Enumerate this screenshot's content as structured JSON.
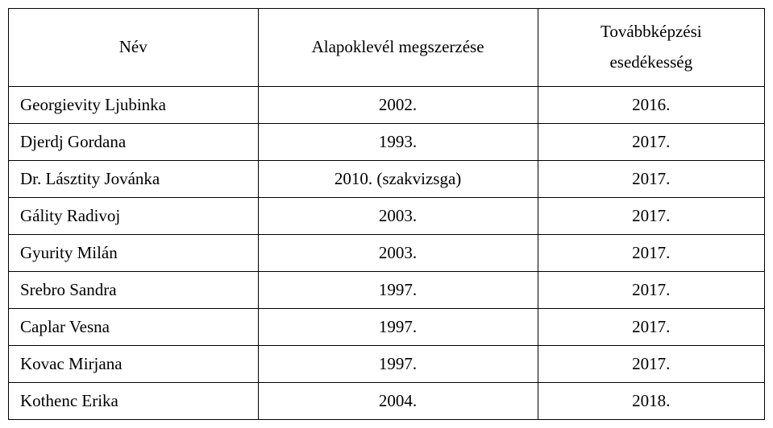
{
  "table": {
    "columns": [
      {
        "label": "Név",
        "width": "33%",
        "align": "center"
      },
      {
        "label": "Alapoklevél megszerzése",
        "width": "37%",
        "align": "center"
      },
      {
        "label_line1": "Továbbképzési",
        "label_line2": "esedékesség",
        "width": "30%",
        "align": "center"
      }
    ],
    "rows": [
      {
        "name": "Georgievity Ljubinka",
        "diploma": "2002.",
        "due": "2016."
      },
      {
        "name": "Djerdj Gordana",
        "diploma": "1993.",
        "due": "2017."
      },
      {
        "name": "Dr. Lásztity Jovánka",
        "diploma": "2010. (szakvizsga)",
        "due": "2017."
      },
      {
        "name": "Gálity Radivoj",
        "diploma": "2003.",
        "due": "2017."
      },
      {
        "name": "Gyurity Milán",
        "diploma": "2003.",
        "due": "2017."
      },
      {
        "name": "Srebro Sandra",
        "diploma": "1997.",
        "due": "2017."
      },
      {
        "name": "Caplar Vesna",
        "diploma": "1997.",
        "due": "2017."
      },
      {
        "name": "Kovac Mirjana",
        "diploma": "1997.",
        "due": "2017."
      },
      {
        "name": "Kothenc Erika",
        "diploma": "2004.",
        "due": "2018."
      }
    ],
    "border_color": "#000000",
    "background_color": "#ffffff",
    "text_color": "#000000",
    "font_family": "Times New Roman",
    "font_size": 21
  }
}
